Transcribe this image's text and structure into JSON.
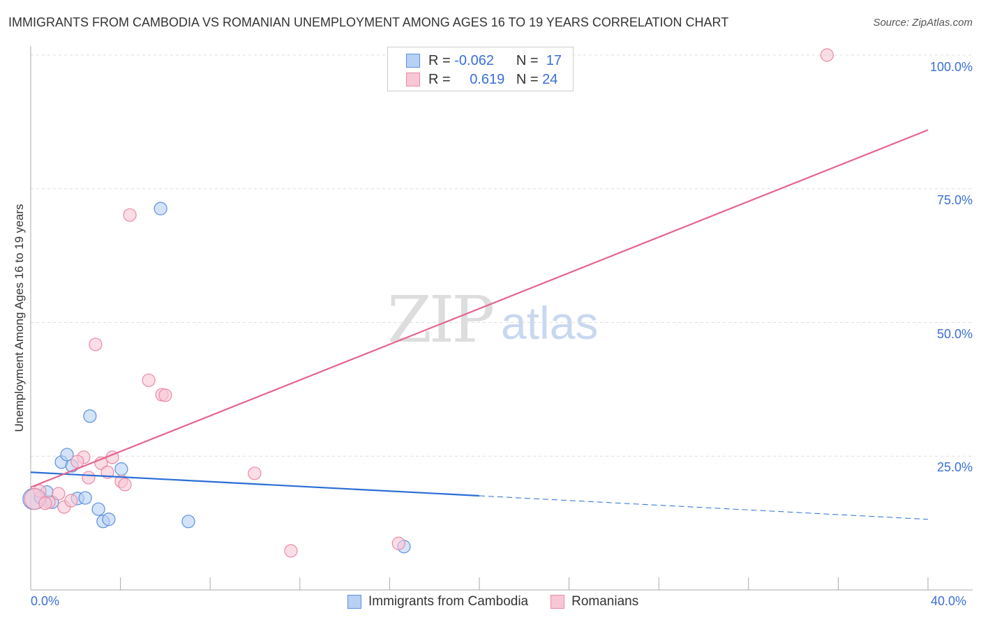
{
  "chart_data": {
    "type": "scatter",
    "title": "IMMIGRANTS FROM CAMBODIA VS ROMANIAN UNEMPLOYMENT AMONG AGES 16 TO 19 YEARS CORRELATION CHART",
    "source": "Source: ZipAtlas.com",
    "xlabel": "",
    "ylabel": "Unemployment Among Ages 16 to 19 years",
    "xlim": [
      0,
      40
    ],
    "ylim": [
      0,
      100
    ],
    "x_tick_labels": [
      "0.0%",
      "40.0%"
    ],
    "y_tick_labels": [
      {
        "v": 100,
        "label": "100.0%"
      },
      {
        "v": 75,
        "label": "75.0%"
      },
      {
        "v": 50,
        "label": "50.0%"
      },
      {
        "v": 25,
        "label": "25.0%"
      }
    ],
    "watermark": "ZIPatlas",
    "series": [
      {
        "name": "Immigrants from Cambodia",
        "color": "#5b8fe0",
        "fill": "#b7d0f3",
        "line_color": "#2a6dd6",
        "R": "-0.062",
        "N": "17",
        "trend": {
          "x0": 0,
          "y0": 22.0,
          "x_solid_end": 20,
          "x1": 40,
          "y1": 13.2
        },
        "points": [
          [
            0.12,
            17.0
          ],
          [
            0.44,
            17.3
          ],
          [
            0.72,
            18.3
          ],
          [
            1.37,
            23.9
          ],
          [
            1.62,
            25.3
          ],
          [
            1.84,
            23.2
          ],
          [
            2.09,
            17.1
          ],
          [
            2.43,
            17.2
          ],
          [
            2.64,
            32.5
          ],
          [
            3.02,
            15.1
          ],
          [
            3.23,
            12.8
          ],
          [
            3.48,
            13.2
          ],
          [
            4.04,
            22.6
          ],
          [
            5.79,
            71.3
          ],
          [
            7.03,
            12.8
          ],
          [
            16.64,
            8.1
          ],
          [
            0.96,
            16.4
          ]
        ]
      },
      {
        "name": "Romanians",
        "color": "#e98aa6",
        "fill": "#f8c6d5",
        "line_color": "#e4648e",
        "R": "0.619",
        "N": "24",
        "trend": {
          "x0": 0,
          "y0": 19.2,
          "x_solid_end": 40,
          "x1": 40,
          "y1": 86.0
        },
        "points": [
          [
            35.5,
            100
          ],
          [
            4.42,
            70.1
          ],
          [
            2.89,
            45.9
          ],
          [
            5.26,
            39.2
          ],
          [
            5.85,
            36.5
          ],
          [
            6.0,
            36.4
          ],
          [
            3.64,
            24.8
          ],
          [
            2.36,
            24.8
          ],
          [
            2.08,
            24.0
          ],
          [
            3.14,
            23.7
          ],
          [
            3.42,
            22.0
          ],
          [
            2.58,
            21.0
          ],
          [
            4.04,
            20.3
          ],
          [
            4.2,
            19.7
          ],
          [
            9.98,
            21.8
          ],
          [
            1.24,
            18.0
          ],
          [
            0.4,
            18.5
          ],
          [
            1.49,
            15.5
          ],
          [
            1.8,
            16.7
          ],
          [
            0.81,
            16.4
          ],
          [
            0.19,
            17.0
          ],
          [
            11.6,
            7.3
          ],
          [
            16.4,
            8.7
          ],
          [
            0.65,
            16.2
          ]
        ]
      }
    ]
  },
  "legend": {
    "r_label": "R =",
    "n_label": "N ="
  }
}
